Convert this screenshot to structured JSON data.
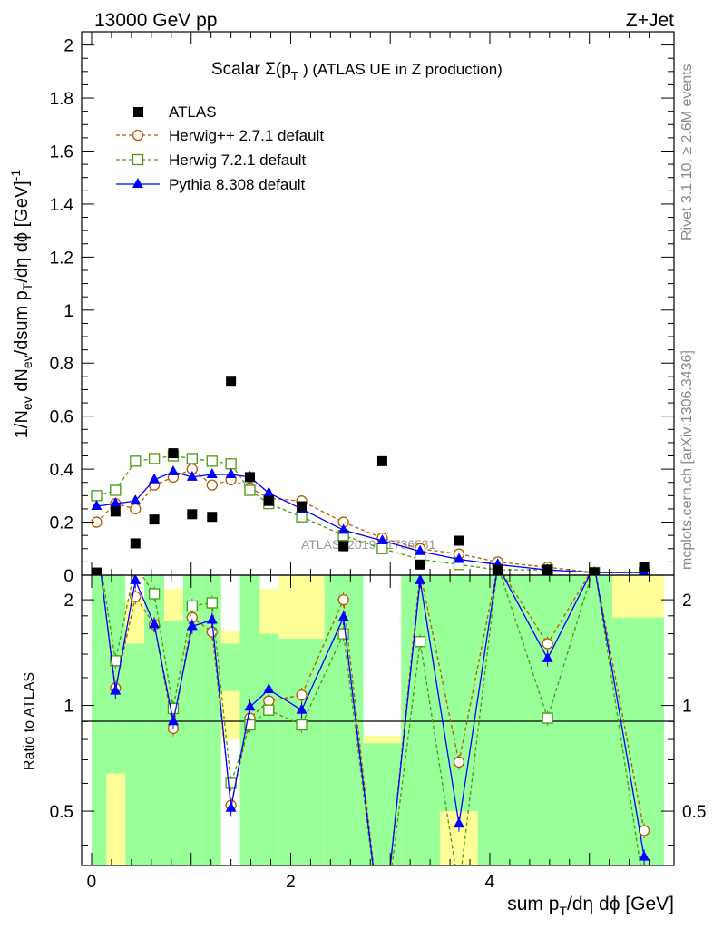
{
  "header": {
    "left": "13000 GeV pp",
    "right": "Z+Jet",
    "side_top": "Rivet 3.1.10, ≥ 2.6M events",
    "side_bottom": "mcplots.cern.ch [arXiv:1306.3436]",
    "watermark": "ATLAS_2019_I1736531"
  },
  "chart_data": {
    "type": "scatter",
    "title": "Scalar Σ(pT) (ATLAS UE in Z production)",
    "title_parts": {
      "a": "Scalar Σ(p",
      "b": "T",
      "c": ") (ATLAS UE in Z production)"
    },
    "ylabel_parts": [
      "1/N",
      "ev",
      " dN",
      "ev",
      "/dsum p",
      "T",
      "/dη dϕ [GeV]",
      "-1"
    ],
    "xlabel_parts": [
      "sum p",
      "T",
      "/dη dϕ [GeV]"
    ],
    "ratio_ylabel": "Ratio to ATLAS",
    "xlim": [
      -0.1,
      5.85
    ],
    "ylim": [
      0,
      2.05
    ],
    "ratio_ylim": [
      0.35,
      2.35
    ],
    "main_yticks": [
      0,
      0.2,
      0.4,
      0.6,
      0.8,
      1,
      1.2,
      1.4,
      1.6,
      1.8,
      2
    ],
    "main_ytick_labels": [
      "0",
      "0.2",
      "0.4",
      "0.6",
      "0.8",
      "1",
      "1.2",
      "1.4",
      "1.6",
      "1.8",
      "2"
    ],
    "ratio_yticks": [
      0.5,
      1,
      2
    ],
    "ratio_ytick_labels": [
      "0.5",
      "1",
      "2"
    ],
    "xticks": [
      0,
      2,
      4
    ],
    "xtick_labels": [
      "0",
      "2",
      "4"
    ],
    "grid": false,
    "legend_position": "top-left",
    "x": [
      0.05,
      0.24,
      0.44,
      0.63,
      0.82,
      1.01,
      1.21,
      1.4,
      1.59,
      1.78,
      2.11,
      2.53,
      2.92,
      3.3,
      3.69,
      4.08,
      4.58,
      5.05,
      5.55
    ],
    "series": [
      {
        "name": "ATLAS",
        "values": [
          0.01,
          0.24,
          0.12,
          0.21,
          0.46,
          0.23,
          0.22,
          0.73,
          0.37,
          0.28,
          0.26,
          0.11,
          0.43,
          0.04,
          0.13,
          0.02,
          0.02,
          0.01,
          0.03
        ],
        "color": "#000000",
        "marker": "square-filled"
      },
      {
        "name": "Herwig++ 2.7.1 default",
        "values": [
          0.2,
          0.27,
          0.25,
          0.34,
          0.37,
          0.4,
          0.34,
          0.36,
          0.33,
          0.29,
          0.28,
          0.2,
          0.14,
          0.1,
          0.08,
          0.05,
          0.03,
          0.01,
          0.01
        ],
        "color": "#b35900",
        "marker": "circle-open"
      },
      {
        "name": "Herwig 7.2.1 default",
        "values": [
          0.3,
          0.32,
          0.43,
          0.44,
          0.45,
          0.44,
          0.43,
          0.42,
          0.32,
          0.27,
          0.22,
          0.15,
          0.1,
          0.06,
          0.04,
          0.02,
          0.02,
          0.01,
          0.01
        ],
        "color": "#4a9a12",
        "marker": "square-open"
      },
      {
        "name": "Pythia 8.308 default",
        "values": [
          0.26,
          0.27,
          0.28,
          0.36,
          0.39,
          0.37,
          0.38,
          0.38,
          0.37,
          0.31,
          0.25,
          0.17,
          0.13,
          0.09,
          0.06,
          0.04,
          0.02,
          0.01,
          0.01
        ],
        "color": "#0000ff",
        "marker": "triangle-filled"
      }
    ],
    "ratio_series": [
      {
        "name": "Herwig++ 2.7.1 default",
        "values": [
          3.0,
          1.12,
          2.04,
          1.7,
          0.86,
          1.78,
          1.62,
          0.52,
          0.92,
          1.03,
          1.07,
          2.0,
          0.2,
          2.4,
          0.69,
          2.5,
          1.5,
          2.5,
          0.44
        ]
      },
      {
        "name": "Herwig 7.2.1 default",
        "values": [
          3.0,
          1.34,
          2.5,
          2.08,
          0.98,
          1.92,
          1.96,
          0.6,
          0.88,
          0.97,
          0.88,
          1.6,
          0.2,
          1.52,
          0.3,
          2.5,
          0.92,
          2.5,
          0.3
        ]
      },
      {
        "name": "Pythia 8.308 default",
        "values": [
          3.0,
          1.1,
          2.27,
          1.7,
          0.9,
          1.68,
          1.75,
          0.51,
          0.99,
          1.11,
          0.97,
          1.78,
          0.2,
          2.27,
          0.46,
          2.5,
          1.36,
          2.5,
          0.37
        ]
      }
    ],
    "ratio_bands": {
      "edges": [
        0.0,
        0.15,
        0.34,
        0.53,
        0.73,
        0.92,
        1.11,
        1.3,
        1.49,
        1.69,
        1.88,
        2.34,
        2.73,
        3.11,
        3.5,
        3.88,
        4.27,
        4.88,
        5.23,
        5.75
      ],
      "green": [
        [
          0.35,
          2.35
        ],
        [
          0.64,
          2.35
        ],
        [
          0.35,
          1.5
        ],
        [
          0.35,
          2.35
        ],
        [
          0.35,
          1.74
        ],
        [
          0.35,
          2.35
        ],
        [
          0.35,
          2.35
        ],
        [
          1.1,
          1.5
        ],
        [
          0.35,
          2.35
        ],
        [
          0.35,
          1.6
        ],
        [
          0.35,
          1.55
        ],
        [
          0.35,
          2.35
        ],
        [
          0.35,
          0.78
        ],
        [
          0.35,
          2.35
        ],
        [
          0.5,
          2.35
        ],
        [
          0.35,
          2.35
        ],
        [
          0.35,
          2.35
        ],
        [
          0.35,
          2.35
        ],
        [
          0.35,
          1.78
        ]
      ],
      "yellow": [
        [
          0.35,
          2.35
        ],
        [
          0.35,
          2.35
        ],
        [
          0.35,
          2.0
        ],
        [
          0.35,
          2.35
        ],
        [
          0.35,
          2.15
        ],
        [
          0.35,
          2.35
        ],
        [
          0.35,
          2.35
        ],
        [
          0.8,
          1.63
        ],
        [
          0.35,
          2.35
        ],
        [
          0.35,
          2.15
        ],
        [
          0.35,
          2.35
        ],
        [
          0.35,
          2.35
        ],
        [
          0.35,
          0.82
        ],
        [
          0.35,
          2.35
        ],
        [
          0.35,
          2.35
        ],
        [
          0.35,
          2.35
        ],
        [
          0.35,
          2.35
        ],
        [
          0.35,
          2.35
        ],
        [
          0.35,
          2.35
        ]
      ]
    }
  }
}
